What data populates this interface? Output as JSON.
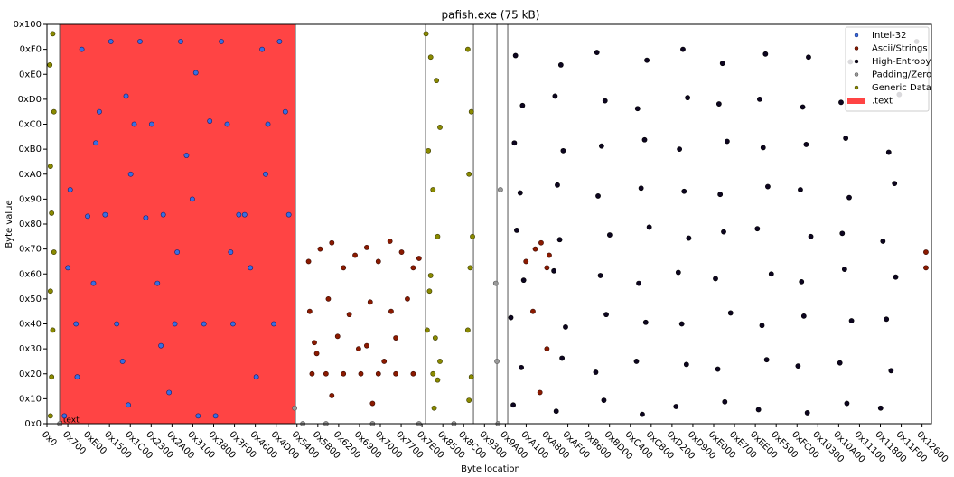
{
  "chart_data": {
    "type": "scatter",
    "title": "pafish.exe (75 kB)",
    "x_label": "Byte location",
    "y_label": "Byte value",
    "xlim": [
      0,
      76070
    ],
    "ylim": [
      0,
      256
    ],
    "xticks": [
      {
        "value": 0,
        "label": "0x0"
      },
      {
        "value": 1792,
        "label": "0x700"
      },
      {
        "value": 3584,
        "label": "0xE00"
      },
      {
        "value": 5376,
        "label": "0x1500"
      },
      {
        "value": 7168,
        "label": "0x1C00"
      },
      {
        "value": 8960,
        "label": "0x2300"
      },
      {
        "value": 10752,
        "label": "0x2A00"
      },
      {
        "value": 12544,
        "label": "0x3100"
      },
      {
        "value": 14336,
        "label": "0x3800"
      },
      {
        "value": 16128,
        "label": "0x3F00"
      },
      {
        "value": 17920,
        "label": "0x4600"
      },
      {
        "value": 19712,
        "label": "0x4D00"
      },
      {
        "value": 21504,
        "label": "0x5400"
      },
      {
        "value": 23296,
        "label": "0x5B00"
      },
      {
        "value": 25088,
        "label": "0x6200"
      },
      {
        "value": 26880,
        "label": "0x6900"
      },
      {
        "value": 28672,
        "label": "0x7000"
      },
      {
        "value": 30464,
        "label": "0x7700"
      },
      {
        "value": 32256,
        "label": "0x7E00"
      },
      {
        "value": 34048,
        "label": "0x8500"
      },
      {
        "value": 35840,
        "label": "0x8C00"
      },
      {
        "value": 37632,
        "label": "0x9300"
      },
      {
        "value": 39424,
        "label": "0x9A00"
      },
      {
        "value": 41216,
        "label": "0xA100"
      },
      {
        "value": 43008,
        "label": "0xA800"
      },
      {
        "value": 44800,
        "label": "0xAF00"
      },
      {
        "value": 46592,
        "label": "0xB600"
      },
      {
        "value": 48384,
        "label": "0xBD00"
      },
      {
        "value": 50176,
        "label": "0xC400"
      },
      {
        "value": 51968,
        "label": "0xCB00"
      },
      {
        "value": 53760,
        "label": "0xD200"
      },
      {
        "value": 55552,
        "label": "0xD900"
      },
      {
        "value": 57344,
        "label": "0xE000"
      },
      {
        "value": 59136,
        "label": "0xE700"
      },
      {
        "value": 60928,
        "label": "0xEE00"
      },
      {
        "value": 62720,
        "label": "0xF500"
      },
      {
        "value": 64512,
        "label": "0xFC00"
      },
      {
        "value": 66304,
        "label": "0x10300"
      },
      {
        "value": 68096,
        "label": "0x10A00"
      },
      {
        "value": 69888,
        "label": "0x11100"
      },
      {
        "value": 71680,
        "label": "0x11800"
      },
      {
        "value": 73472,
        "label": "0x11F00"
      },
      {
        "value": 75264,
        "label": "0x12600"
      }
    ],
    "yticks": [
      {
        "value": 0,
        "label": "0x0"
      },
      {
        "value": 16,
        "label": "0x10"
      },
      {
        "value": 32,
        "label": "0x20"
      },
      {
        "value": 48,
        "label": "0x30"
      },
      {
        "value": 64,
        "label": "0x40"
      },
      {
        "value": 80,
        "label": "0x50"
      },
      {
        "value": 96,
        "label": "0x60"
      },
      {
        "value": 112,
        "label": "0x70"
      },
      {
        "value": 128,
        "label": "0x80"
      },
      {
        "value": 144,
        "label": "0x90"
      },
      {
        "value": 160,
        "label": "0xA0"
      },
      {
        "value": 176,
        "label": "0xB0"
      },
      {
        "value": 192,
        "label": "0xC0"
      },
      {
        "value": 208,
        "label": "0xD0"
      },
      {
        "value": 224,
        "label": "0xE0"
      },
      {
        "value": 240,
        "label": "0xF0"
      },
      {
        "value": 256,
        "label": "0x100"
      }
    ],
    "sections": [
      {
        "name": ".text",
        "start": 1090,
        "end": 21370,
        "color": "#ff4444"
      }
    ],
    "section_lines": [
      1090,
      21370,
      32560,
      36680,
      38700,
      39630
    ],
    "legend": "upper right",
    "series": [
      {
        "name": "Intel-32",
        "color": "#3a6ee0",
        "edge": "#102070",
        "x": [
          1500,
          2500,
          3500,
          4500,
          5500,
          6500,
          7500,
          8500,
          9500,
          10500,
          11500,
          12500,
          13500,
          14500,
          15500,
          16500,
          17500,
          18500,
          19500,
          20500,
          2000,
          3000,
          4000,
          5000,
          6000,
          7000,
          8000,
          9000,
          10000,
          11000,
          12000,
          13000,
          14000,
          15000,
          16000,
          17000,
          18000,
          19000,
          20000,
          20800,
          1800,
          4200,
          6800,
          9800,
          12800,
          15800,
          18800,
          2600,
          7200,
          11200
        ],
        "values": [
          5,
          64,
          133,
          200,
          245,
          40,
          192,
          132,
          90,
          20,
          245,
          144,
          64,
          5,
          192,
          134,
          100,
          240,
          64,
          200,
          150,
          240,
          90,
          134,
          64,
          12,
          245,
          192,
          134,
          64,
          172,
          5,
          194,
          245,
          64,
          134,
          30,
          192,
          245,
          134,
          100,
          180,
          210,
          50,
          225,
          110,
          160,
          30,
          160,
          110
        ]
      },
      {
        "name": "Ascii/Strings",
        "color": "#8b1a00",
        "edge": "#3a0800",
        "x": [
          22500,
          23500,
          24500,
          25500,
          26500,
          27500,
          28500,
          29500,
          30500,
          31500,
          32000,
          22800,
          24000,
          25500,
          27000,
          28500,
          30000,
          31500,
          22600,
          24200,
          26000,
          27800,
          29600,
          31000,
          23000,
          25000,
          27500,
          30000,
          23200,
          26800,
          29000,
          24500,
          28000,
          41200,
          42000,
          43000,
          42500,
          43200,
          41800,
          43000,
          42400,
          75600,
          75600
        ],
        "values": [
          104,
          112,
          116,
          100,
          108,
          113,
          104,
          117,
          110,
          100,
          106,
          32,
          32,
          32,
          32,
          32,
          32,
          32,
          72,
          80,
          70,
          78,
          72,
          80,
          52,
          56,
          50,
          55,
          45,
          48,
          40,
          18,
          13,
          104,
          112,
          100,
          116,
          108,
          72,
          48,
          20,
          110,
          100
        ]
      },
      {
        "name": "High-Entropy",
        "color": "#0d0520",
        "edge": "#000000",
        "x": [
          40100,
          43800,
          47900,
          51200,
          54100,
          58300,
          61200,
          65400,
          68800,
          71700,
          40800,
          44300,
          47200,
          50700,
          55000,
          57700,
          61900,
          64600,
          68200,
          72600,
          39900,
          44600,
          48100,
          51500,
          54600,
          58800,
          61500,
          65100,
          69200,
          72200,
          41000,
          43600,
          47600,
          50900,
          54300,
          57500,
          62300,
          64900,
          68600,
          73000,
          40400,
          44100,
          48400,
          51800,
          55200,
          58200,
          61100,
          65700,
          68400,
          71900,
          40700,
          43900,
          47400,
          51100,
          54800,
          57900,
          62000,
          64800,
          69000,
          72900,
          40200,
          44400,
          47700,
          51400,
          54400,
          58500,
          61600,
          65300,
          68700,
          72400,
          40900,
          43700,
          48000,
          50800,
          55100,
          57800,
          61300,
          65000,
          68300,
          73300,
          40300,
          44200,
          47300,
          51600,
          54700,
          58100,
          61800,
          65500,
          69100,
          74800
        ],
        "values": [
          12,
          8,
          15,
          6,
          11,
          14,
          9,
          7,
          13,
          10,
          36,
          42,
          33,
          40,
          38,
          35,
          41,
          37,
          39,
          34,
          68,
          62,
          70,
          65,
          64,
          71,
          63,
          69,
          66,
          67,
          92,
          98,
          95,
          90,
          97,
          93,
          96,
          91,
          99,
          94,
          124,
          118,
          121,
          126,
          119,
          123,
          125,
          120,
          122,
          117,
          148,
          153,
          146,
          151,
          149,
          147,
          152,
          150,
          145,
          154,
          180,
          175,
          178,
          182,
          176,
          181,
          177,
          179,
          183,
          174,
          204,
          210,
          207,
          202,
          209,
          205,
          208,
          203,
          206,
          211,
          236,
          230,
          238,
          233,
          240,
          231,
          237,
          235,
          232,
          245
        ]
      },
      {
        "name": "Padding/Zero",
        "color": "#999999",
        "edge": "#555555",
        "x": [
          1100,
          22000,
          24000,
          28000,
          32000,
          35000,
          38800,
          38600,
          39000,
          38700,
          21300
        ],
        "values": [
          0,
          0,
          0,
          0,
          0,
          0,
          0,
          90,
          150,
          40,
          10
        ]
      },
      {
        "name": "Generic Data",
        "color": "#8a8a00",
        "edge": "#3a3a00",
        "x": [
          300,
          400,
          500,
          300,
          600,
          400,
          300,
          600,
          250,
          500,
          32600,
          33000,
          33500,
          33800,
          32800,
          33200,
          33600,
          33000,
          32700,
          33400,
          33800,
          33200,
          33600,
          32900,
          33300,
          36200,
          36500,
          36300,
          36600,
          36400,
          36200,
          36500,
          36300
        ],
        "values": [
          5,
          30,
          60,
          85,
          110,
          135,
          165,
          200,
          230,
          250,
          250,
          235,
          220,
          190,
          175,
          150,
          120,
          95,
          60,
          55,
          40,
          32,
          28,
          85,
          10,
          240,
          200,
          160,
          120,
          100,
          60,
          30,
          15
        ]
      }
    ]
  }
}
